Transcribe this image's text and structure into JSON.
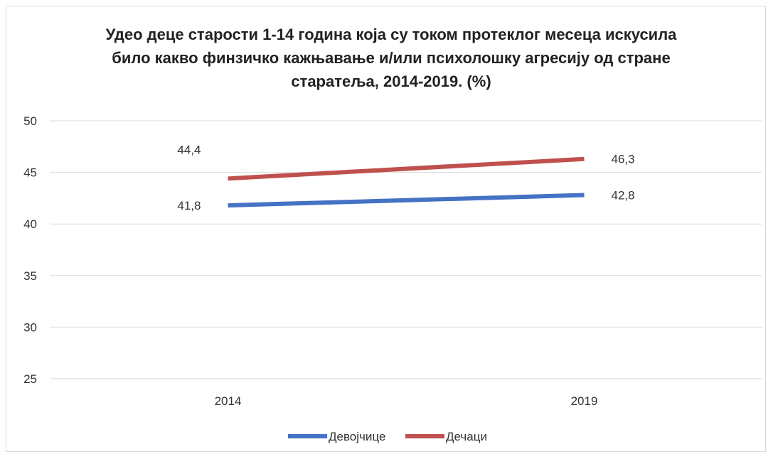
{
  "chart_data": {
    "type": "line",
    "title": "Удео деце старости 1-14 година која су током протеклог месеца искусила било какво финзичко кажњавање и/или психолошку агресију од стране старатеља, 2014-2019. (%)",
    "xlabel": "",
    "ylabel": "",
    "categories": [
      "2014",
      "2019"
    ],
    "ylim": [
      25,
      50
    ],
    "yticks": [
      "25",
      "30",
      "35",
      "40",
      "45",
      "50"
    ],
    "grid": true,
    "legend_position": "bottom",
    "series": [
      {
        "name": "Девојчице",
        "values": [
          41.8,
          42.8
        ],
        "labels": [
          "41,8",
          "42,8"
        ],
        "color": "#4472c4"
      },
      {
        "name": "Дечаци",
        "values": [
          44.4,
          46.3
        ],
        "labels": [
          "44,4",
          "46,3"
        ],
        "color": "#c0504d"
      }
    ]
  }
}
